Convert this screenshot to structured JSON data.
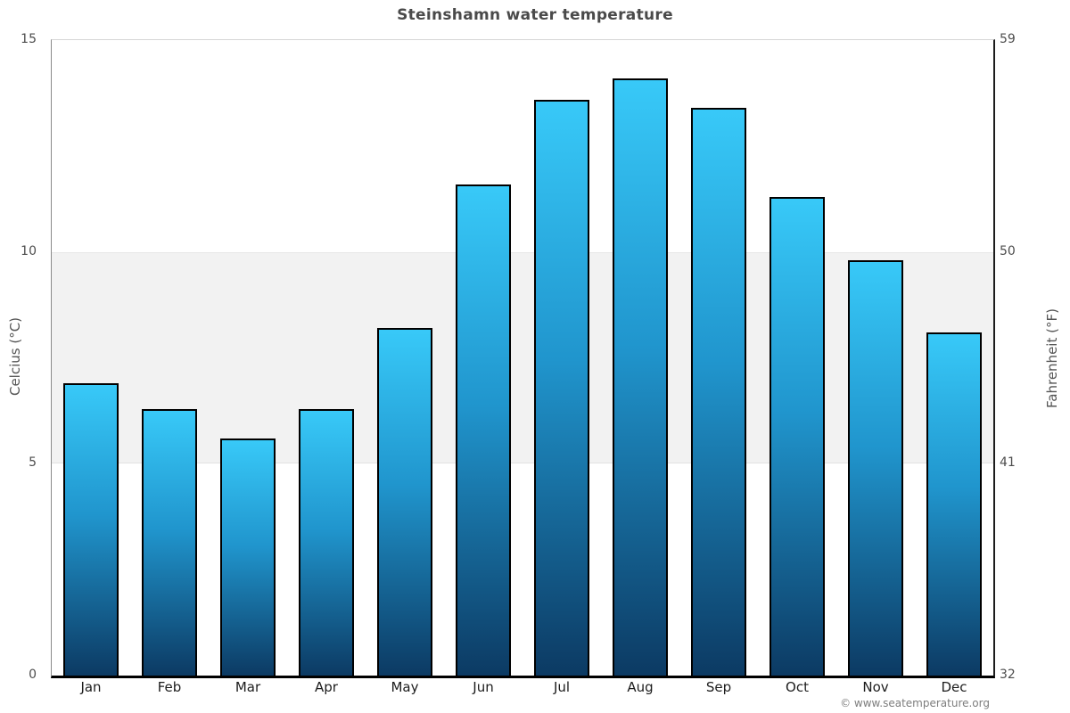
{
  "title": "Steinshamn water temperature",
  "chart_data": {
    "type": "bar",
    "categories": [
      "Jan",
      "Feb",
      "Mar",
      "Apr",
      "May",
      "Jun",
      "Jul",
      "Aug",
      "Sep",
      "Oct",
      "Nov",
      "Dec"
    ],
    "values": [
      6.9,
      6.3,
      5.6,
      6.3,
      8.2,
      11.6,
      13.6,
      14.1,
      13.4,
      11.3,
      9.8,
      8.1
    ],
    "unit": "°C",
    "title": "Steinshamn water temperature",
    "ylabel_left": "Celcius (°C)",
    "ylabel_right": "Fahrenheit (°F)",
    "ylim": [
      0,
      15
    ],
    "yticks": [
      {
        "celsius": "15",
        "fahrenheit": "59",
        "value": 15
      },
      {
        "celsius": "10",
        "fahrenheit": "50",
        "value": 10
      },
      {
        "celsius": "5",
        "fahrenheit": "41",
        "value": 5
      },
      {
        "celsius": "0",
        "fahrenheit": "32",
        "value": 0
      }
    ],
    "band": {
      "from": 5,
      "to": 10,
      "color": "#f2f2f2"
    },
    "grid": "horizontal-band-only",
    "legend": "none",
    "colors": {
      "bar_gradient_top": "#38c9f8",
      "bar_gradient_mid": "#2095cd",
      "bar_gradient_bottom": "#0c3a63",
      "bar_border": "#000000",
      "title_text": "#4a4a4a",
      "tick_text": "#4d4d4d",
      "month_text": "#1c1c1c",
      "copyright_text": "#7d7d7d"
    }
  },
  "footer": {
    "copyright": "© www.seatemperature.org"
  }
}
